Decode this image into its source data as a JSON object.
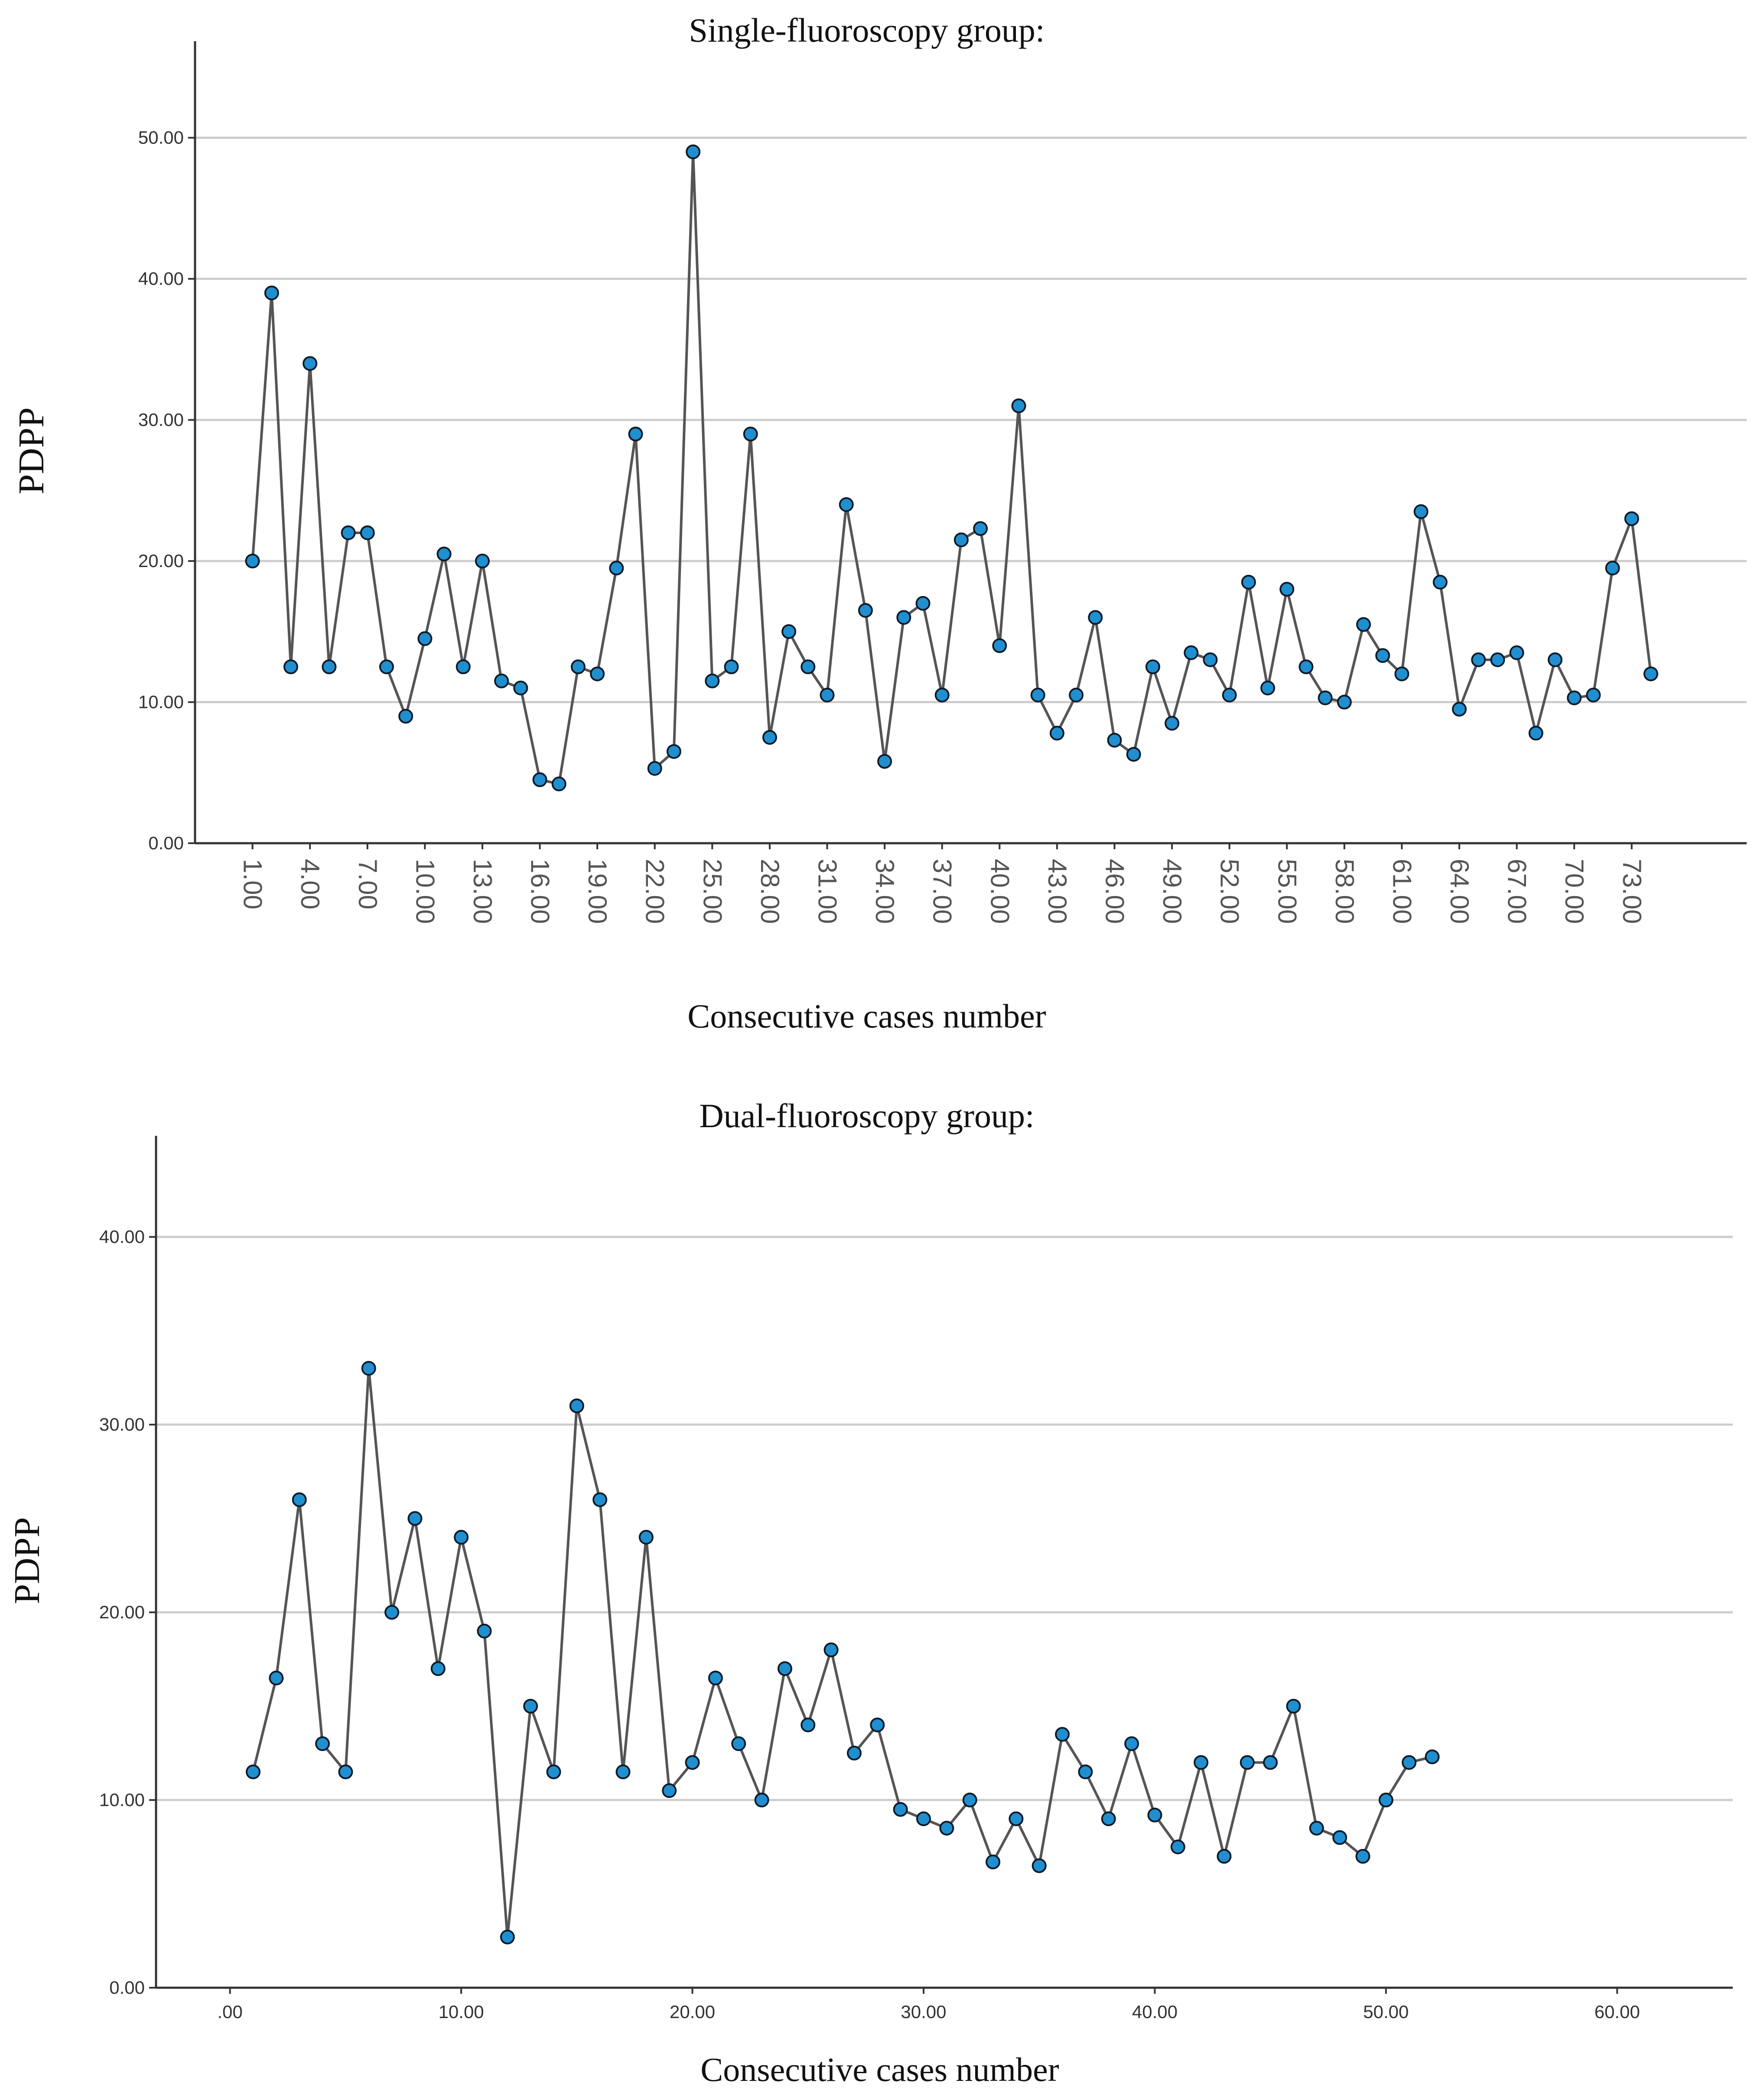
{
  "chart_data": [
    {
      "type": "line",
      "title": "Single-fluoroscopy group:",
      "xlabel": "Consecutive cases number",
      "ylabel": "PDPP",
      "ylim": [
        0,
        55
      ],
      "xlim": [
        -2,
        79
      ],
      "grid": true,
      "y_ticks": [
        "0.00",
        "10.00",
        "20.00",
        "30.00",
        "40.00",
        "50.00"
      ],
      "x_ticks": [
        "1.00",
        "4.00",
        "7.00",
        "10.00",
        "13.00",
        "16.00",
        "19.00",
        "22.00",
        "25.00",
        "28.00",
        "31.00",
        "34.00",
        "37.00",
        "40.00",
        "43.00",
        "46.00",
        "49.00",
        "52.00",
        "55.00",
        "58.00",
        "61.00",
        "64.00",
        "67.00",
        "70.00",
        "73.00"
      ],
      "colors": {
        "line": "#555555",
        "marker_fill": "#1f8fd0",
        "marker_edge": "#0d1a26",
        "grid": "#cccccc",
        "axis": "#333333"
      },
      "series": [
        {
          "name": "PDPP",
          "x": [
            1,
            2,
            3,
            4,
            5,
            6,
            7,
            8,
            9,
            10,
            11,
            12,
            13,
            14,
            15,
            16,
            17,
            18,
            19,
            20,
            21,
            22,
            23,
            24,
            25,
            26,
            27,
            28,
            29,
            30,
            31,
            32,
            33,
            34,
            35,
            36,
            37,
            38,
            39,
            40,
            41,
            42,
            43,
            44,
            45,
            46,
            47,
            48,
            49,
            50,
            51,
            52,
            53,
            54,
            55,
            56,
            57,
            58,
            59,
            60,
            61,
            62,
            63,
            64,
            65,
            66,
            67,
            68,
            69,
            70,
            71,
            72,
            73,
            74
          ],
          "values": [
            20,
            39,
            12.5,
            34,
            12.5,
            22,
            22,
            12.5,
            9,
            14.5,
            20.5,
            12.5,
            20,
            11.5,
            11,
            4.5,
            4.2,
            12.5,
            12,
            19.5,
            29,
            5.3,
            6.5,
            49,
            11.5,
            12.5,
            29,
            7.5,
            15,
            12.5,
            10.5,
            24,
            16.5,
            5.8,
            16,
            17,
            10.5,
            21.5,
            22.3,
            14,
            31,
            10.5,
            7.8,
            10.5,
            16,
            7.3,
            6.3,
            12.5,
            8.5,
            13.5,
            13,
            10.5,
            18.5,
            11,
            18,
            12.5,
            10.3,
            10,
            15.5,
            13.3,
            12,
            23.5,
            18.5,
            9.5,
            13,
            13,
            13.5,
            7.8,
            13,
            10.3,
            10.5,
            19.5,
            23,
            12
          ]
        }
      ]
    },
    {
      "type": "line",
      "title": "Dual-fluoroscopy group:",
      "xlabel": "Consecutive cases number",
      "ylabel": "PDPP",
      "ylim": [
        0,
        44
      ],
      "xlim": [
        -3.2,
        65
      ],
      "grid": true,
      "y_ticks": [
        "0.00",
        "10.00",
        "20.00",
        "30.00",
        "40.00"
      ],
      "x_ticks": [
        ".00",
        "10.00",
        "20.00",
        "30.00",
        "40.00",
        "50.00",
        "60.00"
      ],
      "colors": {
        "line": "#555555",
        "marker_fill": "#1f8fd0",
        "marker_edge": "#0d1a26",
        "grid": "#cccccc",
        "axis": "#333333"
      },
      "series": [
        {
          "name": "PDPP",
          "x": [
            1,
            2,
            3,
            4,
            5,
            6,
            7,
            8,
            9,
            10,
            11,
            12,
            13,
            14,
            15,
            16,
            17,
            18,
            19,
            20,
            21,
            22,
            23,
            24,
            25,
            26,
            27,
            28,
            29,
            30,
            31,
            32,
            33,
            34,
            35,
            36,
            37,
            38,
            39,
            40,
            41,
            42,
            43,
            44,
            45,
            46,
            47,
            48,
            49,
            50,
            51,
            52
          ],
          "values": [
            11.5,
            16.5,
            26,
            13,
            11.5,
            33,
            20,
            25,
            17,
            24,
            19,
            2.7,
            15,
            11.5,
            31,
            26,
            11.5,
            24,
            10.5,
            12,
            16.5,
            13,
            10,
            17,
            14,
            18,
            12.5,
            14,
            9.5,
            9,
            8.5,
            10,
            6.7,
            9,
            6.5,
            13.5,
            11.5,
            9,
            13,
            9.2,
            7.5,
            12,
            7,
            12,
            12,
            15,
            8.5,
            8,
            7,
            10,
            12,
            12.3
          ]
        }
      ]
    }
  ]
}
